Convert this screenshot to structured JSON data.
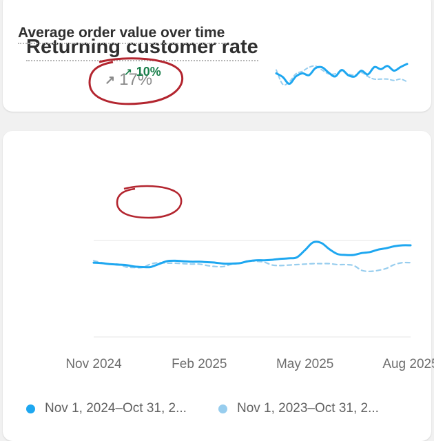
{
  "colors": {
    "current": "#1ea7f0",
    "previous": "#97cdee",
    "positive": "#1a7f4b",
    "neutral": "#8a8a8a",
    "annotation": "#b3252f"
  },
  "returning_card": {
    "title": "Returning customer rate",
    "change_icon": "arrow-up-right-icon",
    "change": "17%"
  },
  "aov_card": {
    "title": "Average order value over time",
    "change_icon": "arrow-up-right-icon",
    "change": "10%"
  },
  "chart_data": [
    {
      "type": "line",
      "title": "Returning customer rate",
      "x": [
        0,
        1,
        2,
        3,
        4,
        5,
        6,
        7,
        8,
        9,
        10,
        11,
        12,
        13,
        14,
        15,
        16,
        17,
        18,
        19,
        20
      ],
      "series": [
        {
          "values": [
            0.62,
            0.48,
            0.22,
            0.5,
            0.62,
            0.55,
            0.82,
            0.85,
            0.65,
            0.5,
            0.75,
            0.55,
            0.5,
            0.72,
            0.58,
            0.86,
            0.78,
            0.9,
            0.72,
            0.86,
            0.98
          ]
        },
        {
          "values": [
            0.75,
            0.2,
            0.3,
            0.6,
            0.7,
            0.85,
            0.9,
            0.75,
            0.6,
            0.6,
            0.7,
            0.6,
            0.55,
            0.65,
            0.5,
            0.4,
            0.4,
            0.4,
            0.35,
            0.4,
            0.3
          ]
        }
      ]
    },
    {
      "type": "line",
      "title": "Average order value over time",
      "x_tick_labels": [
        "Nov 2024",
        "Feb 2025",
        "May 2025",
        "Aug 2025"
      ],
      "x_tick_index": [
        0,
        13,
        26,
        39
      ],
      "grid": true,
      "ylim": [
        0,
        100
      ],
      "series": [
        {
          "name": "Nov 1, 2024–Oct 31, 2...",
          "values": [
            77,
            76.5,
            75.5,
            75,
            74.5,
            73,
            72.5,
            72.5,
            75.5,
            78.5,
            79,
            78.5,
            78,
            78,
            77.5,
            77,
            76,
            76,
            76.5,
            78.5,
            79.5,
            79.5,
            80,
            81,
            81.5,
            82.5,
            90,
            98,
            97.5,
            91,
            86,
            85,
            85,
            87,
            88,
            90.5,
            92,
            94,
            95,
            95
          ]
        },
        {
          "name": "Nov 1, 2023–Oct 31, 2...",
          "values": [
            79,
            77,
            75.5,
            75.5,
            72.5,
            72,
            72,
            75.5,
            77,
            76.5,
            76.5,
            76,
            75.5,
            75.5,
            74,
            73,
            73,
            75.5,
            76.5,
            79,
            78.5,
            77.5,
            74.5,
            74,
            74.5,
            75,
            75.5,
            76,
            76,
            76,
            75,
            75,
            74,
            69,
            68,
            69,
            71,
            75,
            77,
            77
          ]
        }
      ]
    }
  ],
  "legend": [
    {
      "label": "Nov 1, 2024–Oct 31, 2..."
    },
    {
      "label": "Nov 1, 2023–Oct 31, 2..."
    }
  ]
}
